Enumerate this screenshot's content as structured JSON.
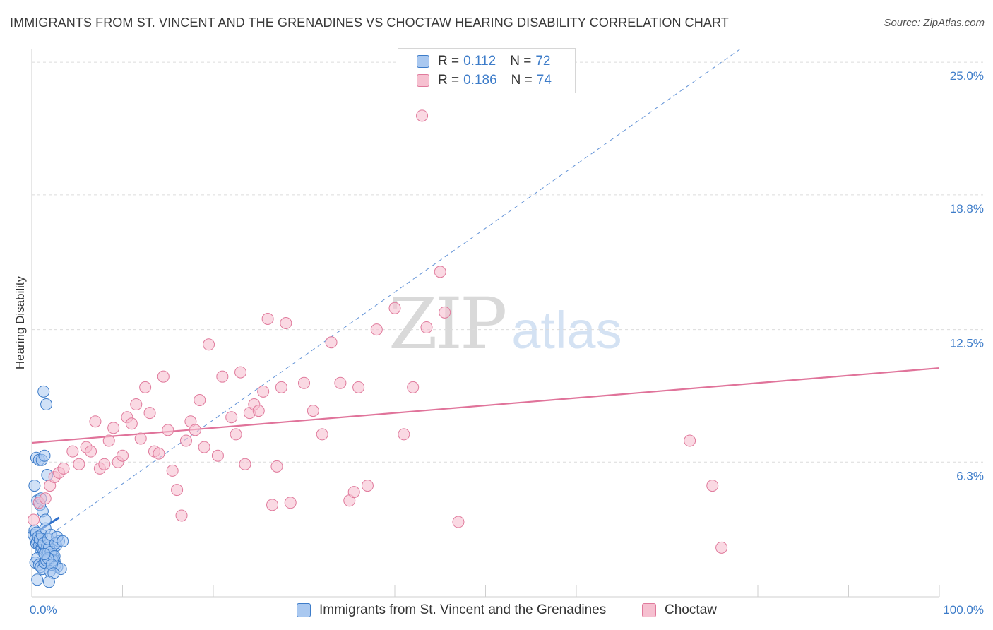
{
  "header": {
    "title": "IMMIGRANTS FROM ST. VINCENT AND THE GRENADINES VS CHOCTAW HEARING DISABILITY CORRELATION CHART",
    "source": "Source: ZipAtlas.com"
  },
  "watermark": {
    "zip": "ZIP",
    "atlas": "atlas"
  },
  "legend": {
    "r_label": "R =",
    "n_label": "N =",
    "series": [
      {
        "name": "Immigrants from St. Vincent and the Grenadines",
        "r": "0.112",
        "n": "72"
      },
      {
        "name": "Choctaw",
        "r": "0.186",
        "n": "74"
      }
    ]
  },
  "chart_data": {
    "type": "scatter",
    "title": "IMMIGRANTS FROM ST. VINCENT AND THE GRENADINES VS CHOCTAW HEARING DISABILITY CORRELATION CHART",
    "xlabel": "",
    "ylabel": "Hearing Disability",
    "xlim": [
      0,
      100
    ],
    "ylim": [
      0,
      25.6
    ],
    "x_tick_labels": [
      "0.0%",
      "100.0%"
    ],
    "y_ticks": [
      6.3,
      12.5,
      18.8,
      25.0
    ],
    "y_tick_labels": [
      "6.3%",
      "12.5%",
      "18.8%",
      "25.0%"
    ],
    "grid": true,
    "colors": {
      "blue_fill": "#a9c8f0",
      "blue_stroke": "#3d7cc9",
      "blue_line": "#2f6fca",
      "pink_fill": "#f6c0d0",
      "pink_stroke": "#e07a9c",
      "pink_line": "#e0739a",
      "axis_text": "#3d7cc9"
    },
    "series": [
      {
        "name": "Immigrants from St. Vincent and the Grenadines",
        "color": "blue",
        "x": [
          0.2,
          0.4,
          0.5,
          0.6,
          0.7,
          0.8,
          0.9,
          1.0,
          1.1,
          1.2,
          1.3,
          1.4,
          1.5,
          1.6,
          1.7,
          1.8,
          1.9,
          2.0,
          2.1,
          2.2,
          2.3,
          2.4,
          2.5,
          2.6,
          2.7,
          2.8,
          3.0,
          3.2,
          0.3,
          0.5,
          0.7,
          0.9,
          1.1,
          1.3,
          1.5,
          1.7,
          1.9,
          2.1,
          2.3,
          2.5,
          0.4,
          0.6,
          0.8,
          1.0,
          1.2,
          1.4,
          1.6,
          1.8,
          2.0,
          2.2,
          2.4,
          0.3,
          0.6,
          0.9,
          1.2,
          1.5,
          1.8,
          2.1,
          0.5,
          0.8,
          1.1,
          1.4,
          1.7,
          0.6,
          1.0,
          1.4,
          2.6,
          2.8,
          3.4,
          1.3,
          1.6,
          1.9
        ],
        "y": [
          2.9,
          2.7,
          2.5,
          2.6,
          2.8,
          2.4,
          2.6,
          2.2,
          2.3,
          2.5,
          2.1,
          2.0,
          2.4,
          2.2,
          1.9,
          2.1,
          2.3,
          1.8,
          2.0,
          1.6,
          1.9,
          2.2,
          1.7,
          1.5,
          2.4,
          1.4,
          2.6,
          1.3,
          3.1,
          3.0,
          2.8,
          2.7,
          2.9,
          2.5,
          3.2,
          2.4,
          2.3,
          2.1,
          1.7,
          1.9,
          1.6,
          1.8,
          1.5,
          1.4,
          1.3,
          1.6,
          1.7,
          1.8,
          1.2,
          1.5,
          1.1,
          5.2,
          4.5,
          4.3,
          4.0,
          3.6,
          2.7,
          2.9,
          6.5,
          6.4,
          6.4,
          6.6,
          5.7,
          0.8,
          4.6,
          2.0,
          2.5,
          2.8,
          2.6,
          9.6,
          9.0,
          0.7
        ]
      },
      {
        "name": "Choctaw",
        "color": "pink",
        "x": [
          0.2,
          0.8,
          1.5,
          2.0,
          2.5,
          3.0,
          3.5,
          4.5,
          5.2,
          6.0,
          6.5,
          7.0,
          7.5,
          8.0,
          8.5,
          9.0,
          9.5,
          10.0,
          10.5,
          11.0,
          11.5,
          12.0,
          12.5,
          13.0,
          13.5,
          14.0,
          14.5,
          15.0,
          15.5,
          16.0,
          16.5,
          17.0,
          17.5,
          18.0,
          18.5,
          19.0,
          19.5,
          20.5,
          21.0,
          22.0,
          22.5,
          23.0,
          23.5,
          24.0,
          24.5,
          25.0,
          25.5,
          26.0,
          26.5,
          27.0,
          27.5,
          28.0,
          28.5,
          30.0,
          31.0,
          32.0,
          33.0,
          34.0,
          35.0,
          35.5,
          36.0,
          37.0,
          38.0,
          40.0,
          41.0,
          42.0,
          43.0,
          45.0,
          47.0,
          43.5,
          45.5,
          72.5,
          75.0,
          76.0
        ],
        "y": [
          3.6,
          4.4,
          4.6,
          5.2,
          5.6,
          5.8,
          6.0,
          6.8,
          6.2,
          7.0,
          6.8,
          8.2,
          6.0,
          6.2,
          7.3,
          7.9,
          6.3,
          6.6,
          8.4,
          8.1,
          9.0,
          7.4,
          9.8,
          8.6,
          6.8,
          6.7,
          10.3,
          7.8,
          5.9,
          5.0,
          3.8,
          7.3,
          8.2,
          7.8,
          9.2,
          7.0,
          11.8,
          6.6,
          10.3,
          8.4,
          7.6,
          10.5,
          6.2,
          8.6,
          9.0,
          8.7,
          9.6,
          13.0,
          4.3,
          6.1,
          9.8,
          12.8,
          4.4,
          10.0,
          8.7,
          7.6,
          11.9,
          10.0,
          4.5,
          4.9,
          9.8,
          5.2,
          12.5,
          13.5,
          7.6,
          9.8,
          22.5,
          15.2,
          3.5,
          12.6,
          13.3,
          7.3,
          5.2,
          2.3
        ]
      }
    ],
    "trend_lines": [
      {
        "series": "Immigrants from St. Vincent and the Grenadines",
        "style": "solid",
        "x": [
          0,
          3.0
        ],
        "y": [
          2.9,
          3.7
        ]
      },
      {
        "series": "Immigrants from St. Vincent and the Grenadines",
        "style": "dashed",
        "x": [
          0,
          78
        ],
        "y": [
          2.3,
          25.6
        ]
      },
      {
        "series": "Choctaw",
        "style": "solid",
        "x": [
          0,
          100
        ],
        "y": [
          7.2,
          10.7
        ]
      }
    ]
  }
}
